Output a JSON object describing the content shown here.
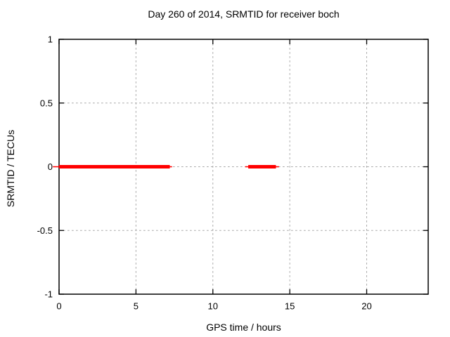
{
  "chart_data": {
    "type": "line",
    "title": "Day 260 of 2014, SRMTID for receiver boch",
    "xlabel": "GPS time / hours",
    "ylabel": "SRMTID / TECUs",
    "xlim": [
      0,
      24
    ],
    "ylim": [
      -1,
      1
    ],
    "xticks": [
      0,
      5,
      10,
      15,
      20
    ],
    "yticks": [
      -1,
      -0.5,
      0,
      0.5,
      1
    ],
    "grid": true,
    "grid_color": "#aaaaaa",
    "axis_color": "#000000",
    "background_color": "#ffffff",
    "legend": "none",
    "series": [
      {
        "name": "SRMTID",
        "color": "#ff0000",
        "description": "thick horizontal data bands at y=0 with thin whisker extensions",
        "segments": [
          {
            "y": 0,
            "x_start": 0.0,
            "x_end": 7.2,
            "whisker_x_start": -0.4,
            "whisker_x_end": 7.35
          },
          {
            "y": 0,
            "x_start": 12.3,
            "x_end": 14.1,
            "whisker_x_start": 12.1,
            "whisker_x_end": 14.3
          }
        ]
      }
    ]
  }
}
